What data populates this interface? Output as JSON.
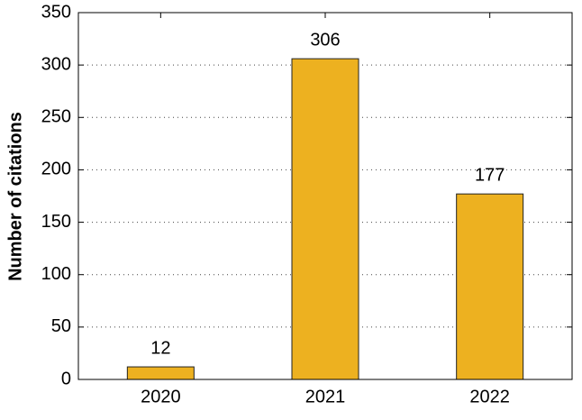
{
  "chart_data": {
    "type": "bar",
    "y_label": "Number of citations",
    "categories": [
      "2020",
      "2021",
      "2022"
    ],
    "values": [
      12,
      306,
      177
    ],
    "color": "#edb120",
    "ylim": [
      0,
      350
    ],
    "yticks": [
      0,
      50,
      100,
      150,
      200,
      250,
      300,
      350
    ],
    "grid": true
  }
}
